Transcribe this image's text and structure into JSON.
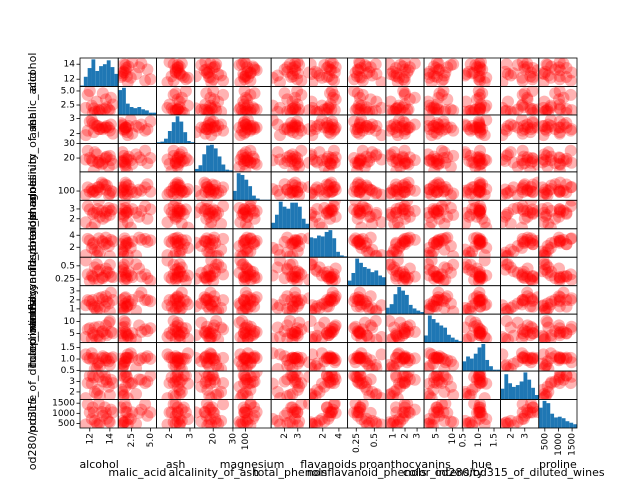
{
  "chart_data": {
    "type": "scatter_matrix",
    "scatter_color": "#ff0000",
    "hist_color": "#1f77b4",
    "variables": [
      {
        "name": "alcohol",
        "lim": [
          11.03,
          14.83
        ],
        "ticks": [
          12,
          14
        ],
        "bins": [
          11.03,
          11.41,
          11.79,
          12.17,
          12.55,
          12.93,
          13.31,
          13.69,
          14.07,
          14.45,
          14.83
        ],
        "counts": [
          1,
          10,
          19,
          28,
          16,
          21,
          23,
          27,
          20,
          13
        ],
        "samples": [
          13.2,
          12.4,
          14.1,
          12.9,
          13.7,
          11.8,
          12.3,
          13.5,
          14.3,
          12.0,
          13.0,
          12.7,
          13.9,
          11.6,
          12.5,
          13.3,
          14.0,
          12.2,
          13.6,
          12.8
        ]
      },
      {
        "name": "malic_acid",
        "lim": [
          0.74,
          5.8
        ],
        "ticks": [
          2.5,
          {
            "value": 5,
            "label": "5.0"
          }
        ],
        "bins": [
          0.74,
          1.25,
          1.75,
          2.26,
          2.76,
          3.27,
          3.78,
          4.28,
          4.79,
          5.29,
          5.8
        ],
        "counts": [
          44,
          48,
          20,
          14,
          12,
          14,
          10,
          8,
          4,
          4
        ],
        "samples": [
          1.7,
          1.9,
          3.8,
          1.6,
          2.1,
          4.3,
          1.1,
          1.8,
          2.6,
          5.0,
          1.4,
          3.1,
          1.7,
          2.0,
          1.3,
          4.6,
          1.5,
          2.4,
          3.5,
          1.2
        ]
      },
      {
        "name": "ash",
        "lim": [
          1.36,
          3.23
        ],
        "ticks": [
          2,
          3
        ],
        "bins": [
          1.36,
          1.55,
          1.73,
          1.92,
          2.11,
          2.3,
          2.48,
          2.67,
          2.86,
          3.04,
          3.23
        ],
        "counts": [
          2,
          3,
          8,
          21,
          36,
          46,
          37,
          19,
          4,
          2
        ],
        "samples": [
          2.4,
          2.1,
          2.6,
          2.3,
          2.5,
          2.2,
          2.7,
          2.4,
          2.0,
          2.8,
          2.3,
          2.5,
          2.4,
          1.9,
          2.6,
          2.3,
          2.2,
          2.9,
          2.4,
          2.5
        ]
      },
      {
        "name": "alcalinity_of_ash",
        "lim": [
          10.6,
          30.0
        ],
        "ticks": [
          20,
          30
        ],
        "bins": [
          10.6,
          12.54,
          14.48,
          16.42,
          18.36,
          20.3,
          22.24,
          24.18,
          26.12,
          28.06,
          30.0
        ],
        "counts": [
          4,
          9,
          24,
          36,
          37,
          32,
          21,
          10,
          3,
          2
        ],
        "samples": [
          15.6,
          11.2,
          18.6,
          16.8,
          21.0,
          25.0,
          17.8,
          19.5,
          16.0,
          20.0,
          18.0,
          22.5,
          14.0,
          19.0,
          24.0,
          16.5,
          21.5,
          18.5,
          20.5,
          17.0
        ]
      },
      {
        "name": "magnesium",
        "lim": [
          70,
          162
        ],
        "ticks": [
          100
        ],
        "bins": [
          70,
          79.2,
          88.4,
          97.6,
          106.8,
          116,
          125.2,
          134.4,
          143.6,
          152.8,
          162
        ],
        "counts": [
          16,
          46,
          43,
          35,
          24,
          8,
          3,
          1,
          1,
          1
        ],
        "samples": [
          127,
          100,
          101,
          113,
          118,
          112,
          96,
          121,
          97,
          98,
          105,
          95,
          86,
          88,
          101,
          122,
          92,
          106,
          104,
          112
        ]
      },
      {
        "name": "total_phenols",
        "lim": [
          0.98,
          3.88
        ],
        "ticks": [
          2,
          3
        ],
        "bins": [
          0.98,
          1.27,
          1.56,
          1.85,
          2.14,
          2.43,
          2.72,
          3.01,
          3.3,
          3.59,
          3.88
        ],
        "counts": [
          6,
          14,
          27,
          22,
          20,
          26,
          26,
          22,
          10,
          5
        ],
        "samples": [
          2.8,
          2.65,
          2.8,
          3.85,
          2.8,
          3.27,
          2.5,
          2.6,
          2.98,
          2.95,
          2.2,
          2.6,
          3.1,
          1.65,
          1.48,
          2.0,
          2.4,
          1.1,
          2.2,
          3.0
        ]
      },
      {
        "name": "flavanoids",
        "lim": [
          0.34,
          5.08
        ],
        "ticks": [
          2,
          4
        ],
        "bins": [
          0.34,
          0.81,
          1.29,
          1.76,
          2.24,
          2.71,
          3.18,
          3.66,
          4.13,
          4.61,
          5.08
        ],
        "counts": [
          22,
          21,
          24,
          23,
          28,
          30,
          21,
          6,
          2,
          1
        ],
        "samples": [
          3.06,
          2.76,
          3.24,
          3.49,
          2.69,
          3.39,
          2.52,
          2.51,
          2.98,
          3.15,
          1.1,
          0.6,
          2.2,
          0.7,
          1.6,
          2.9,
          0.5,
          1.9,
          3.6,
          1.3
        ]
      },
      {
        "name": "nonflavanoid_phenols",
        "lim": [
          0.13,
          0.66
        ],
        "ticks": [
          0.25,
          0.5
        ],
        "bins": [
          0.13,
          0.183,
          0.236,
          0.289,
          0.342,
          0.395,
          0.448,
          0.501,
          0.554,
          0.607,
          0.66
        ],
        "counts": [
          6,
          15,
          32,
          27,
          22,
          20,
          16,
          18,
          12,
          10
        ],
        "samples": [
          0.28,
          0.26,
          0.3,
          0.24,
          0.39,
          0.34,
          0.3,
          0.31,
          0.29,
          0.22,
          0.43,
          0.53,
          0.37,
          0.6,
          0.47,
          0.27,
          0.52,
          0.32,
          0.45,
          0.4
        ]
      },
      {
        "name": "proanthocyanins",
        "lim": [
          0.41,
          3.58
        ],
        "ticks": [
          1,
          2,
          3
        ],
        "bins": [
          0.41,
          0.727,
          1.044,
          1.361,
          1.678,
          1.995,
          2.312,
          2.629,
          2.946,
          3.263,
          3.58
        ],
        "counts": [
          9,
          14,
          28,
          38,
          33,
          27,
          13,
          8,
          5,
          3
        ],
        "samples": [
          2.29,
          1.28,
          2.81,
          2.18,
          1.82,
          1.97,
          1.98,
          1.25,
          1.98,
          1.85,
          1.0,
          0.8,
          1.6,
          1.4,
          1.1,
          2.0,
          0.7,
          1.5,
          2.4,
          1.3
        ]
      },
      {
        "name": "color_intensity",
        "lim": [
          1.28,
          13
        ],
        "ticks": [
          5,
          10
        ],
        "bins": [
          1.28,
          2.452,
          3.624,
          4.796,
          5.968,
          7.14,
          8.312,
          9.484,
          10.656,
          11.828,
          13
        ],
        "counts": [
          10,
          38,
          33,
          28,
          24,
          21,
          11,
          7,
          4,
          2
        ],
        "samples": [
          5.64,
          4.38,
          5.68,
          7.8,
          4.32,
          6.75,
          5.25,
          5.05,
          5.2,
          7.22,
          3.0,
          2.5,
          9.5,
          3.6,
          7.5,
          6.0,
          10.2,
          2.9,
          8.4,
          4.1
        ]
      },
      {
        "name": "hue",
        "lim": [
          0.48,
          1.71
        ],
        "ticks": [
          0.5,
          {
            "value": 1,
            "label": "1.0"
          },
          1.5
        ],
        "bins": [
          0.48,
          0.603,
          0.726,
          0.849,
          0.972,
          1.095,
          1.218,
          1.341,
          1.464,
          1.587,
          1.71
        ],
        "counts": [
          14,
          21,
          18,
          25,
          34,
          39,
          16,
          7,
          2,
          2
        ],
        "samples": [
          1.04,
          1.05,
          1.03,
          0.86,
          1.04,
          1.05,
          1.02,
          1.06,
          1.08,
          1.01,
          0.7,
          0.6,
          0.9,
          1.2,
          0.57,
          1.12,
          0.75,
          1.25,
          0.95,
          0.8
        ]
      },
      {
        "name": "od280/od315_of_diluted_wines",
        "lim": [
          1.27,
          4.0
        ],
        "ticks": [
          2,
          3
        ],
        "bins": [
          1.27,
          1.543,
          1.816,
          2.089,
          2.362,
          2.635,
          2.908,
          3.181,
          3.454,
          3.727,
          4.0
        ],
        "counts": [
          12,
          28,
          18,
          14,
          16,
          20,
          30,
          22,
          13,
          5
        ],
        "samples": [
          3.92,
          3.4,
          3.17,
          3.45,
          2.93,
          2.85,
          3.58,
          3.58,
          2.85,
          3.55,
          1.6,
          1.8,
          2.5,
          1.4,
          2.0,
          3.0,
          1.7,
          2.8,
          3.2,
          2.2
        ]
      },
      {
        "name": "proline",
        "lim": [
          278,
          1680
        ],
        "ticks": [
          500,
          1000,
          1500
        ],
        "bins": [
          278,
          418.2,
          558.4,
          698.6,
          838.8,
          979,
          1119.2,
          1259.4,
          1399.6,
          1539.8,
          1680
        ],
        "counts": [
          27,
          36,
          33,
          19,
          14,
          15,
          13,
          9,
          7,
          5
        ],
        "samples": [
          1065,
          1050,
          1185,
          1480,
          735,
          1450,
          1290,
          1295,
          1045,
          1045,
          520,
          480,
          600,
          450,
          630,
          880,
          560,
          720,
          1020,
          410
        ]
      }
    ]
  }
}
